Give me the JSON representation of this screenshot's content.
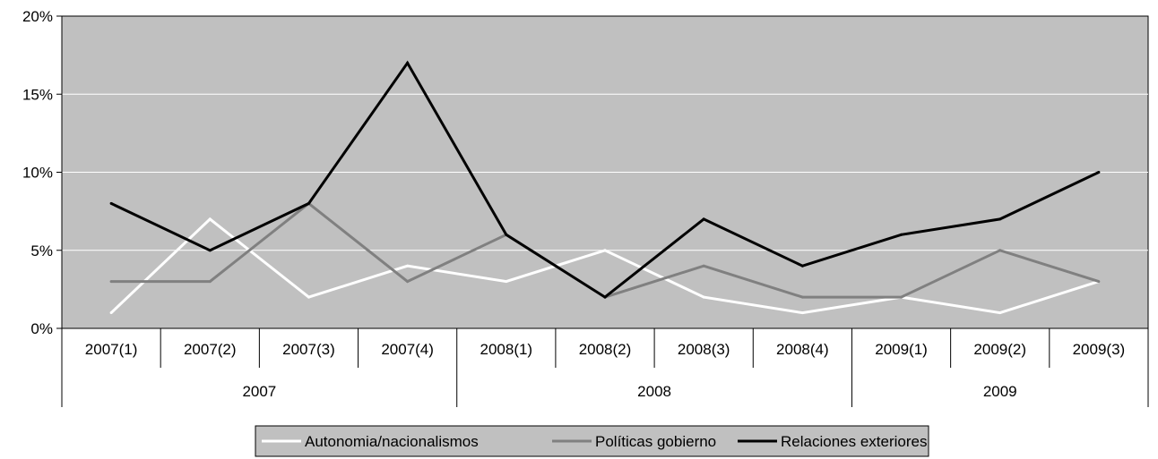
{
  "chart_data": {
    "type": "line",
    "title": "",
    "xlabel": "",
    "ylabel": "",
    "ylim": [
      0,
      20
    ],
    "y_ticks": [
      "0%",
      "5%",
      "10%",
      "15%",
      "20%"
    ],
    "y_tick_values": [
      0,
      5,
      10,
      15,
      20
    ],
    "grid": true,
    "legend_position": "bottom",
    "categories": [
      "2007(1)",
      "2007(2)",
      "2007(3)",
      "2007(4)",
      "2008(1)",
      "2008(2)",
      "2008(3)",
      "2008(4)",
      "2009(1)",
      "2009(2)",
      "2009(3)"
    ],
    "groups": [
      {
        "label": "2007",
        "count": 4
      },
      {
        "label": "2008",
        "count": 4
      },
      {
        "label": "2009",
        "count": 3
      }
    ],
    "plot_background": "#c0c0c0",
    "series": [
      {
        "name": "Autonomia/nacionalismos",
        "color": "#ffffff",
        "values": [
          1,
          7,
          2,
          4,
          3,
          5,
          2,
          1,
          2,
          1,
          3
        ]
      },
      {
        "name": "Políticas gobierno",
        "color": "#808080",
        "values": [
          3,
          3,
          8,
          3,
          6,
          2,
          4,
          2,
          2,
          5,
          3
        ]
      },
      {
        "name": "Relaciones exteriores",
        "color": "#000000",
        "values": [
          8,
          5,
          8,
          17,
          6,
          2,
          7,
          4,
          6,
          7,
          10
        ]
      }
    ]
  }
}
